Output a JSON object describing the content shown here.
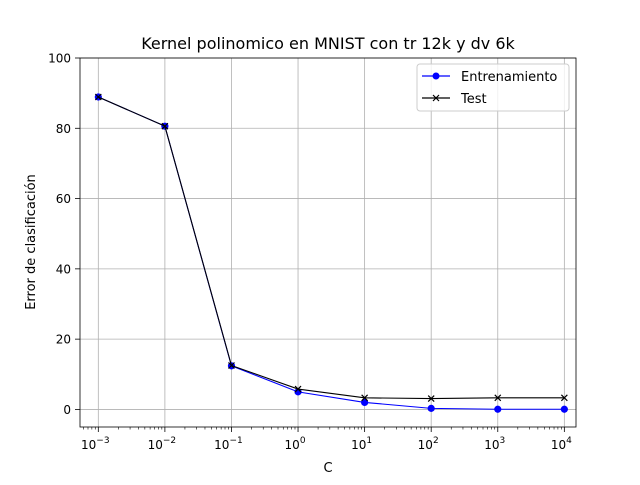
{
  "chart_data": {
    "type": "line",
    "title": "Kernel polinomico en MNIST con tr 12k y dv 6k",
    "xlabel": "C",
    "ylabel": "Error de clasificación",
    "x_scale": "log",
    "x": [
      0.001,
      0.01,
      0.1,
      1,
      10,
      100,
      1000,
      10000
    ],
    "x_tick_labels": [
      {
        "base": "10",
        "exp": "−3"
      },
      {
        "base": "10",
        "exp": "−2"
      },
      {
        "base": "10",
        "exp": "−1"
      },
      {
        "base": "10",
        "exp": "0"
      },
      {
        "base": "10",
        "exp": "1"
      },
      {
        "base": "10",
        "exp": "2"
      },
      {
        "base": "10",
        "exp": "3"
      },
      {
        "base": "10",
        "exp": "4"
      }
    ],
    "y_ticks": [
      0,
      20,
      40,
      60,
      80,
      100
    ],
    "ylim": [
      -5,
      100
    ],
    "grid": true,
    "legend_position": "top-right",
    "series": [
      {
        "name": "Entrenamiento",
        "marker": "circle",
        "color": "#0000ff",
        "values": [
          88.9,
          80.6,
          12.4,
          5.0,
          2.0,
          0.3,
          0.05,
          0.05
        ]
      },
      {
        "name": "Test",
        "marker": "x",
        "color": "#000000",
        "values": [
          88.9,
          80.6,
          12.5,
          5.8,
          3.3,
          3.1,
          3.3,
          3.3
        ]
      }
    ]
  }
}
